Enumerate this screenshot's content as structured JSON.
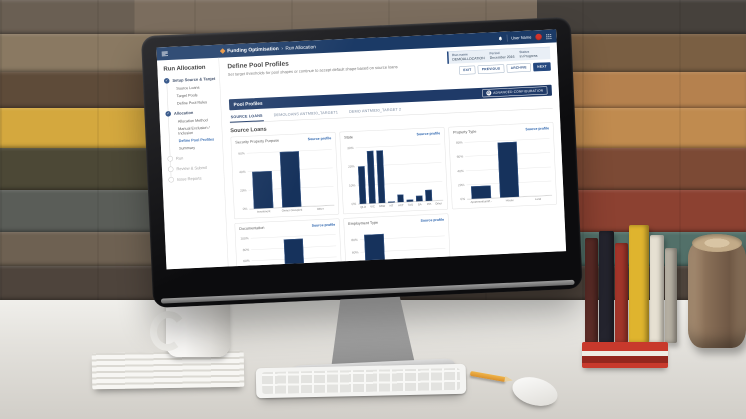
{
  "app": {
    "header": {
      "brand": "Funding Optimisation",
      "breadcrumb_separator": "›",
      "page": "Run Allocation",
      "user_name": "User Name"
    },
    "sidebar": {
      "title": "Run Allocation",
      "steps": [
        {
          "label": "Setup Source & Target",
          "state": "done",
          "children": [
            "Source Loans",
            "Target Pools",
            "Define Pool Rules"
          ],
          "active_child": ""
        },
        {
          "label": "Allocation",
          "state": "done",
          "children": [
            "Allocation Method",
            "Manual Exclusion / Inclusion",
            "Define Pool Profiles",
            "Summary"
          ],
          "active_child": "Define Pool Profiles"
        },
        {
          "label": "Run",
          "state": "pending",
          "children": [],
          "active_child": ""
        },
        {
          "label": "Review & Submit",
          "state": "pending",
          "children": [],
          "active_child": ""
        },
        {
          "label": "Issue Reports",
          "state": "pending",
          "children": [],
          "active_child": ""
        }
      ]
    },
    "page_header": {
      "title": "Define Pool Profiles",
      "subtitle": "Set target thresholds for pool shapes or continue to accept default shape based on source loans"
    },
    "run_info": [
      {
        "label": "Run name",
        "value": "DEMOALLOCATION"
      },
      {
        "label": "Period",
        "value": "December 2016"
      },
      {
        "label": "Status",
        "value": "In Progress"
      }
    ],
    "action_buttons": [
      {
        "label": "EXIT",
        "style": "outline"
      },
      {
        "label": "PREVIOUS",
        "style": "outline"
      },
      {
        "label": "ARCHIVE",
        "style": "outline"
      },
      {
        "label": "NEXT",
        "style": "primary"
      }
    ],
    "panel": {
      "title": "Pool Profiles",
      "config_button": "ADVANCED CONFIGURATION",
      "gear_glyph": "⚙"
    },
    "tabs": [
      {
        "label": "SOURCE LOANS",
        "active": true
      },
      {
        "label": "DEMOLOANS ANTM830_TARGET1",
        "active": false
      },
      {
        "label": "DEMO ANTM830_TARGET 2",
        "active": false
      }
    ],
    "section_title": "Source Loans",
    "source_profile_link": "Source profile"
  },
  "colors": {
    "header_navy": "#1b3a66",
    "panel_navy": "#1f3a68",
    "bar_fill": "#16325c",
    "link_blue": "#2a63ad",
    "status_panel_bg": "#e9eff6",
    "avatar_red": "#d0342c"
  },
  "chart_data": [
    {
      "type": "bar",
      "title": "Security Property Purpose",
      "categories": [
        "Investment",
        "Owner Occupied",
        "Other"
      ],
      "values": [
        40,
        60,
        0
      ],
      "yticks": [
        0,
        20,
        40,
        60
      ],
      "ylim": [
        0,
        65
      ],
      "unit": "%",
      "grid": true,
      "link": "Source profile"
    },
    {
      "type": "bar",
      "title": "State",
      "categories": [
        "QLD",
        "VIC",
        "NSW",
        "NT",
        "ACT",
        "TAS",
        "SA",
        "WA",
        "Other"
      ],
      "values": [
        20,
        28,
        28,
        0.5,
        4,
        1,
        3,
        6,
        0
      ],
      "yticks": [
        0,
        10,
        20,
        30
      ],
      "ylim": [
        0,
        32
      ],
      "unit": "%",
      "grid": true,
      "link": "Source profile"
    },
    {
      "type": "bar",
      "title": "Property Type",
      "categories": [
        "Apartment/unit/f...",
        "House",
        "Land"
      ],
      "values": [
        18,
        78,
        0
      ],
      "yticks": [
        0,
        20,
        40,
        60,
        80
      ],
      "ylim": [
        0,
        85
      ],
      "unit": "%",
      "grid": true,
      "link": "Source profile"
    },
    {
      "type": "bar",
      "title": "Documentation",
      "categories": [
        "",
        "",
        ""
      ],
      "values": [
        0,
        95,
        0
      ],
      "yticks": [
        0,
        20,
        40,
        60,
        80,
        100
      ],
      "ylim": [
        0,
        105
      ],
      "unit": "%",
      "grid": true,
      "link": "Source profile",
      "clipped_by_screen_edge": true
    },
    {
      "type": "bar",
      "title": "Employment Type",
      "categories": [
        "",
        "",
        ""
      ],
      "values": [
        88,
        0,
        0
      ],
      "yticks": [
        0,
        20,
        40,
        60,
        80
      ],
      "ylim": [
        0,
        95
      ],
      "unit": "%",
      "grid": true,
      "link": "Source profile",
      "clipped_by_screen_edge": true
    }
  ]
}
